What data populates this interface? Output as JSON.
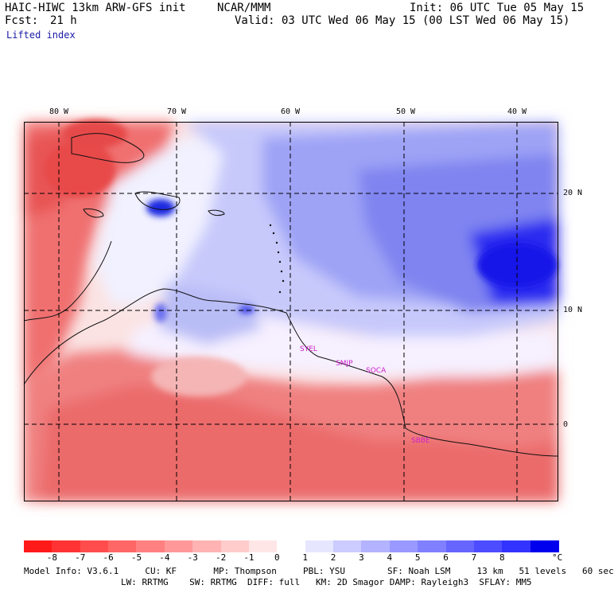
{
  "header": {
    "model": "HAIC-HIWC 13km ARW-GFS init",
    "org": "NCAR/MMM",
    "init": "Init: 06 UTC Tue 05 May 15",
    "fcst_label": "Fcst:",
    "fcst_value": "21 h",
    "valid": "Valid: 03 UTC Wed 06 May 15 (00 LST Wed 06 May 15)",
    "field": "Lifted index"
  },
  "map": {
    "lon_labels": [
      "80 W",
      "70 W",
      "60 W",
      "50 W",
      "40 W"
    ],
    "lat_labels": [
      "20 N",
      "10 N",
      "0"
    ],
    "station_labels": [
      "SYEL",
      "SMJP",
      "SOCA",
      "SBBE"
    ],
    "station_color": "#cc22cc",
    "grid_color": "#000000",
    "line_style": "dashed"
  },
  "colorbar": {
    "ticks": [
      "-8",
      "-7",
      "-6",
      "-5",
      "-4",
      "-3",
      "-2",
      "-1",
      "0",
      "1",
      "2",
      "3",
      "4",
      "5",
      "6",
      "7",
      "8"
    ],
    "unit": "°C",
    "colors": [
      "#ff1a1a",
      "#ff3333",
      "#ff4d4d",
      "#ff6666",
      "#ff8080",
      "#ff9999",
      "#ffb3b3",
      "#ffcccc",
      "#ffe6e6",
      "#ffffff",
      "#e6e6ff",
      "#ccccff",
      "#b3b3ff",
      "#9999ff",
      "#8080ff",
      "#6666ff",
      "#4d4dff",
      "#3333ff",
      "#0000ee"
    ]
  },
  "footer": {
    "line1": "Model Info: V3.6.1     CU: KF       MP: Thompson     PBL: YSU        SF: Noah LSM     13 km   51 levels   60 sec",
    "line2": "LW: RRTMG    SW: RRTMG  DIFF: full   KM: 2D Smagor DAMP: Rayleigh3  SFLAY: MM5"
  }
}
